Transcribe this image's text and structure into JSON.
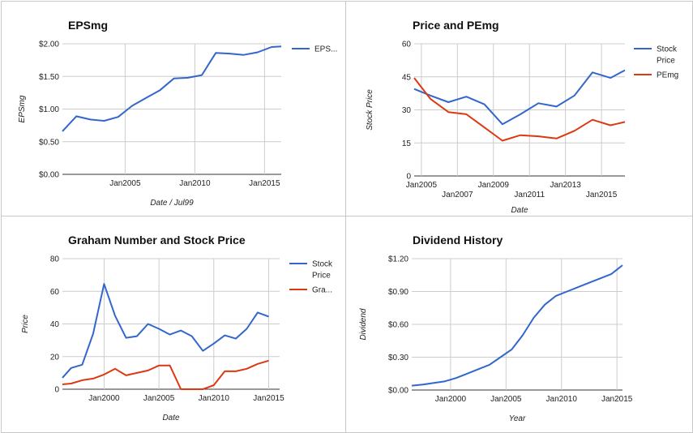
{
  "colors": {
    "blue": "#3366cc",
    "red": "#dc3912"
  },
  "chart_data": [
    {
      "type": "line",
      "title": "EPSmg",
      "xlabel": "Date / Jul99",
      "ylabel": "EPSmg",
      "ylim": [
        0,
        2
      ],
      "yticks": [
        0,
        0.5,
        1,
        1.5,
        2
      ],
      "ytick_labels": [
        "$0.00",
        "$0.50",
        "$1.00",
        "$1.50",
        "$2.00"
      ],
      "xlim": [
        2000.5,
        2016.2
      ],
      "xticks": [
        2005,
        2010,
        2015
      ],
      "xtick_labels": [
        "Jan2005",
        "Jan2010",
        "Jan2015"
      ],
      "series": [
        {
          "name": "EPS...",
          "color": "#3366cc",
          "x": [
            2000.5,
            2001.5,
            2002.5,
            2003.5,
            2004.5,
            2005.5,
            2006.5,
            2007.5,
            2008.5,
            2009.5,
            2010.5,
            2011.5,
            2012.5,
            2013.5,
            2014.5,
            2015.5,
            2016.2
          ],
          "y": [
            0.66,
            0.89,
            0.84,
            0.82,
            0.88,
            1.05,
            1.17,
            1.29,
            1.47,
            1.48,
            1.52,
            1.86,
            1.85,
            1.83,
            1.87,
            1.95,
            1.96
          ]
        }
      ]
    },
    {
      "type": "line",
      "title": "Price and PEmg",
      "xlabel": "Date",
      "ylabel": "Stock Price",
      "ylim": [
        0,
        60
      ],
      "yticks": [
        0,
        15,
        30,
        45,
        60
      ],
      "ytick_labels": [
        "0",
        "15",
        "30",
        "45",
        "60"
      ],
      "xlim": [
        2004.6,
        2016.3
      ],
      "xticks": [
        2005,
        2007,
        2009,
        2011,
        2013,
        2015
      ],
      "xtick_labels": [
        "Jan2005",
        "Jan2007",
        "Jan2009",
        "Jan2011",
        "Jan2013",
        "Jan2015"
      ],
      "series": [
        {
          "name": "Stock Price",
          "color": "#3366cc",
          "x": [
            2004.6,
            2005.5,
            2006.5,
            2007.5,
            2008.5,
            2009.5,
            2010.5,
            2011.5,
            2012.5,
            2013.5,
            2014.5,
            2015.5,
            2016.3
          ],
          "y": [
            39.5,
            36.5,
            33.5,
            36.0,
            32.5,
            23.5,
            28.0,
            33.0,
            31.5,
            36.5,
            47.0,
            44.5,
            48.0
          ]
        },
        {
          "name": "PEmg",
          "color": "#dc3912",
          "x": [
            2004.6,
            2005.5,
            2006.5,
            2007.5,
            2008.5,
            2009.5,
            2010.5,
            2011.5,
            2012.5,
            2013.5,
            2014.5,
            2015.5,
            2016.3
          ],
          "y": [
            44.5,
            35.0,
            29.0,
            28.0,
            22.0,
            16.0,
            18.5,
            18.0,
            17.0,
            20.5,
            25.5,
            23.0,
            24.5
          ]
        }
      ]
    },
    {
      "type": "line",
      "title": "Graham Number and Stock Price",
      "xlabel": "Date",
      "ylabel": "Price",
      "ylim": [
        0,
        80
      ],
      "yticks": [
        0,
        20,
        40,
        60,
        80
      ],
      "ytick_labels": [
        "0",
        "20",
        "40",
        "60",
        "80"
      ],
      "xlim": [
        1996.2,
        2016.0
      ],
      "xticks": [
        2000,
        2005,
        2010,
        2015
      ],
      "xtick_labels": [
        "Jan2000",
        "Jan2005",
        "Jan2010",
        "Jan2015"
      ],
      "series": [
        {
          "name": "Stock Price",
          "color": "#3366cc",
          "x": [
            1996.2,
            1997.0,
            1998.0,
            1999.0,
            2000.0,
            2001.0,
            2002.0,
            2003.0,
            2004.0,
            2005.0,
            2006.0,
            2007.0,
            2008.0,
            2009.0,
            2010.0,
            2011.0,
            2012.0,
            2013.0,
            2014.0,
            2015.0
          ],
          "y": [
            7.0,
            13.0,
            15.0,
            34.0,
            64.5,
            45.0,
            31.5,
            32.5,
            40.0,
            37.0,
            33.5,
            36.0,
            32.5,
            23.5,
            28.0,
            33.0,
            31.0,
            37.0,
            47.0,
            44.5
          ]
        },
        {
          "name": "Gra...",
          "color": "#dc3912",
          "x": [
            1996.2,
            1997.0,
            1998.0,
            1999.0,
            2000.0,
            2001.0,
            2002.0,
            2003.0,
            2004.0,
            2005.0,
            2006.0,
            2007.0,
            2008.0,
            2009.0,
            2010.0,
            2011.0,
            2012.0,
            2013.0,
            2014.0,
            2015.0
          ],
          "y": [
            3.0,
            3.5,
            5.5,
            6.5,
            9.0,
            12.5,
            8.5,
            10.0,
            11.5,
            14.5,
            14.5,
            0.0,
            0.0,
            0.0,
            2.5,
            11.0,
            11.0,
            12.5,
            15.5,
            17.5
          ]
        }
      ]
    },
    {
      "type": "line",
      "title": "Dividend History",
      "xlabel": "Year",
      "ylabel": "Dividend",
      "ylim": [
        0,
        1.2
      ],
      "yticks": [
        0,
        0.3,
        0.6,
        0.9,
        1.2
      ],
      "ytick_labels": [
        "$0.00",
        "$0.30",
        "$0.60",
        "$0.90",
        "$1.20"
      ],
      "xlim": [
        1996.5,
        2015.5
      ],
      "xticks": [
        2000,
        2005,
        2010,
        2015
      ],
      "xtick_labels": [
        "Jan2000",
        "Jan2005",
        "Jan2010",
        "Jan2015"
      ],
      "series": [
        {
          "name": "",
          "color": "#3366cc",
          "x": [
            1996.5,
            1997.5,
            1998.5,
            1999.5,
            2000.5,
            2001.5,
            2002.5,
            2003.5,
            2004.5,
            2005.5,
            2006.5,
            2007.5,
            2008.5,
            2009.5,
            2010.5,
            2011.5,
            2012.5,
            2013.5,
            2014.5,
            2015.5
          ],
          "y": [
            0.04,
            0.05,
            0.065,
            0.08,
            0.11,
            0.15,
            0.19,
            0.23,
            0.3,
            0.37,
            0.5,
            0.66,
            0.78,
            0.86,
            0.9,
            0.94,
            0.98,
            1.02,
            1.06,
            1.14
          ]
        }
      ]
    }
  ]
}
